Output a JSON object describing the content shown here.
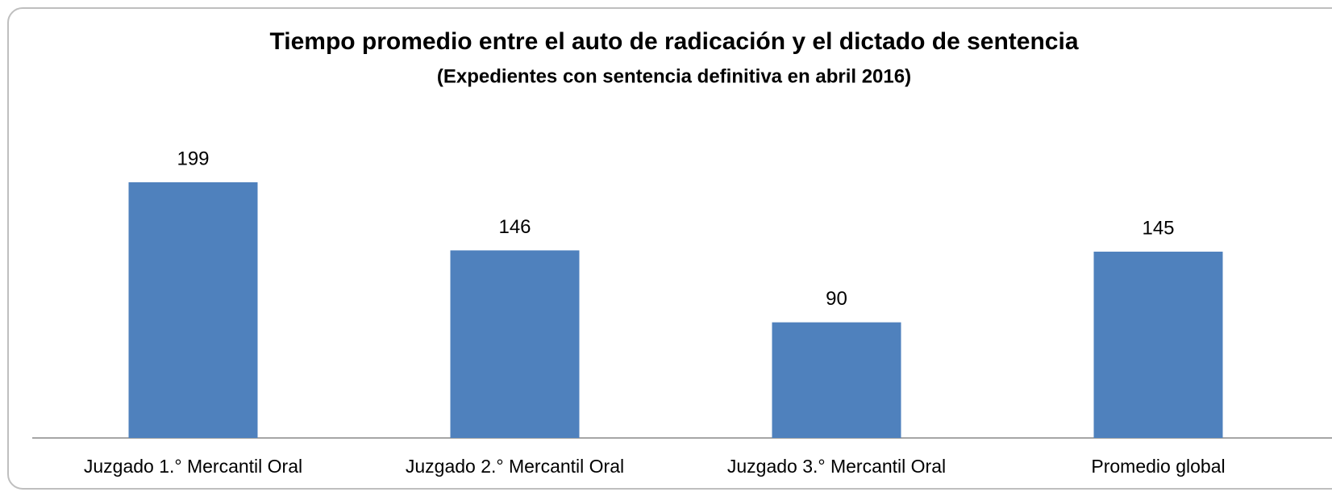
{
  "chart_data": {
    "type": "bar",
    "title": "Tiempo promedio entre el auto de radicación y el dictado de sentencia",
    "subtitle": "(Expedientes con sentencia definitiva en abril 2016)",
    "categories": [
      "Juzgado 1.° Mercantil Oral",
      "Juzgado 2.° Mercantil Oral",
      "Juzgado 3.° Mercantil Oral",
      "Promedio global"
    ],
    "values": [
      199,
      146,
      90,
      145
    ],
    "color": "#4f81bd"
  }
}
